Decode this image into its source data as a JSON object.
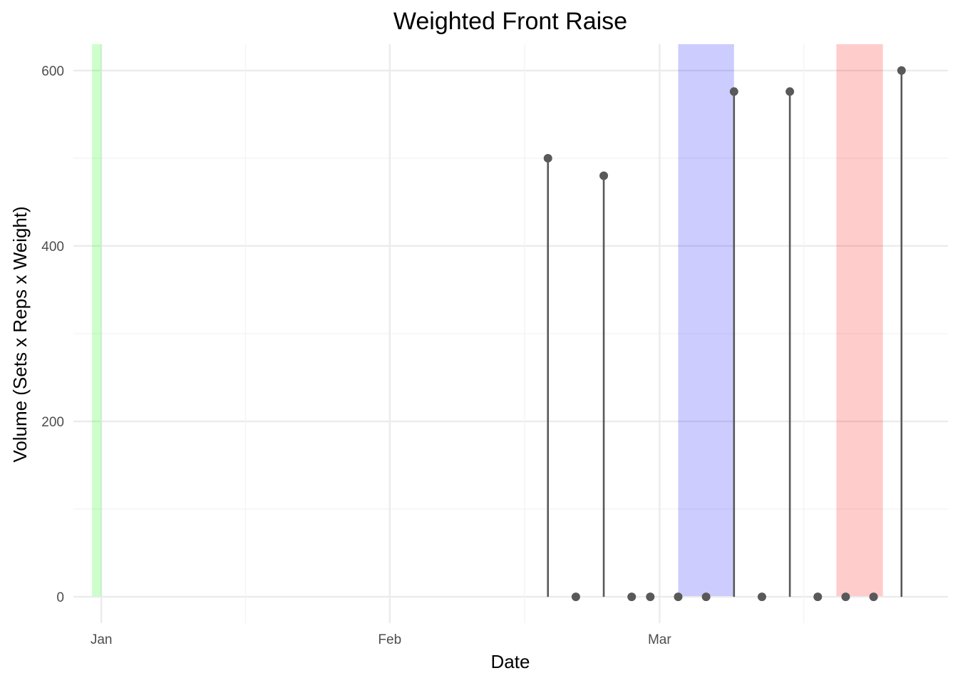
{
  "chart_data": {
    "type": "lollipop",
    "title": "Weighted Front Raise",
    "xlabel": "Date",
    "ylabel": "Volume (Sets x Reps x Weight)",
    "x_axis": {
      "type": "date",
      "range": [
        "2023-12-29",
        "2024-04-01"
      ],
      "tick_labels": [
        {
          "date": "2024-01-01",
          "label": "Jan"
        },
        {
          "date": "2024-02-01",
          "label": "Feb"
        },
        {
          "date": "2024-03-01",
          "label": "Mar"
        }
      ]
    },
    "y_axis": {
      "ylim": [
        -30,
        630
      ],
      "tick_labels": [
        {
          "value": 0,
          "label": "0"
        },
        {
          "value": 200,
          "label": "200"
        },
        {
          "value": 400,
          "label": "400"
        },
        {
          "value": 600,
          "label": "600"
        }
      ]
    },
    "grid": true,
    "legend": "none",
    "colors": {
      "point": "#595959",
      "segment": "#595959",
      "gridline": "#ebebeb"
    },
    "shaded_periods": [
      {
        "start": "2023-12-31",
        "end": "2024-01-01",
        "color": "#00ff00",
        "opacity": 0.2
      },
      {
        "start": "2024-03-03",
        "end": "2024-03-09",
        "color": "#0000ff",
        "opacity": 0.2
      },
      {
        "start": "2024-03-20",
        "end": "2024-03-25",
        "color": "#ff0000",
        "opacity": 0.2
      }
    ],
    "points": [
      {
        "date": "2024-02-18",
        "value": 500
      },
      {
        "date": "2024-02-21",
        "value": 0
      },
      {
        "date": "2024-02-24",
        "value": 480
      },
      {
        "date": "2024-02-27",
        "value": 0
      },
      {
        "date": "2024-02-29",
        "value": 0
      },
      {
        "date": "2024-03-03",
        "value": 0
      },
      {
        "date": "2024-03-06",
        "value": 0
      },
      {
        "date": "2024-03-09",
        "value": 576
      },
      {
        "date": "2024-03-12",
        "value": 0
      },
      {
        "date": "2024-03-15",
        "value": 576
      },
      {
        "date": "2024-03-18",
        "value": 0
      },
      {
        "date": "2024-03-21",
        "value": 0
      },
      {
        "date": "2024-03-24",
        "value": 0
      },
      {
        "date": "2024-03-27",
        "value": 600
      }
    ]
  }
}
